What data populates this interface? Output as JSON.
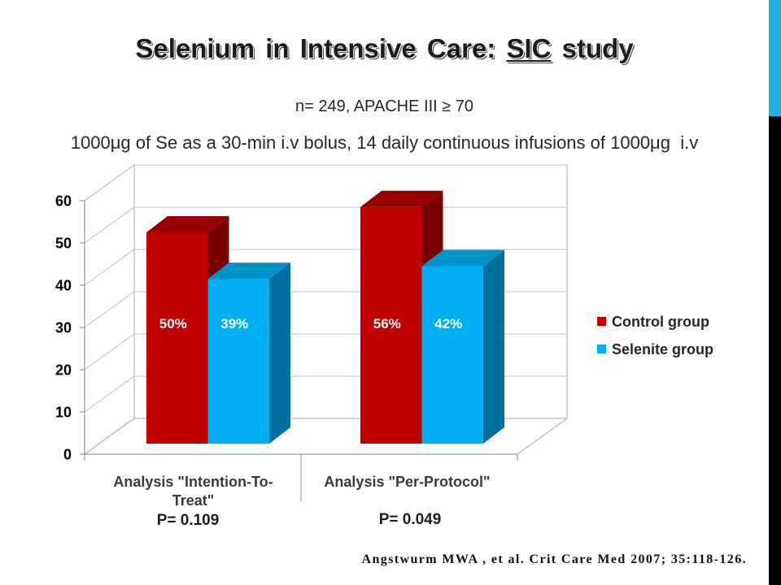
{
  "slide": {
    "title": {
      "before": "Selenium in Intensive Care:",
      "underlined": "SIC",
      "after": "study"
    },
    "subtitle": "n= 249, APACHE III ≥ 70",
    "dosing": "1000μg of Se as a 30-min i.v bolus, 14 daily continuous infusions of 1000μg  i.v",
    "citation": "Angstwurm MWA , et al. Crit Care Med 2007; 35:118-126.",
    "theme": {
      "accent": "#22B1E3",
      "dark": "#000000"
    }
  },
  "chart_data": {
    "type": "bar",
    "style": "3d-clustered-column",
    "categories": [
      "Analysis \"Intention-To-Treat\"",
      "Analysis \"Per-Protocol\""
    ],
    "series": [
      {
        "name": "Control group",
        "values": [
          50,
          56
        ],
        "data_labels": [
          "50%",
          "56%"
        ],
        "color": "#C00000",
        "top_color": "#980000",
        "side_color": "#7A0000"
      },
      {
        "name": "Selenite group",
        "values": [
          39,
          42
        ],
        "data_labels": [
          "39%",
          "42%"
        ],
        "color": "#00B0F0",
        "top_color": "#0093C8",
        "side_color": "#0070A0"
      }
    ],
    "ylim": [
      0,
      60
    ],
    "yticks": [
      0,
      10,
      20,
      30,
      40,
      50,
      60
    ],
    "grid": true,
    "legend": "right",
    "p_values": [
      "P= 0.109",
      "P= 0.049"
    ]
  }
}
